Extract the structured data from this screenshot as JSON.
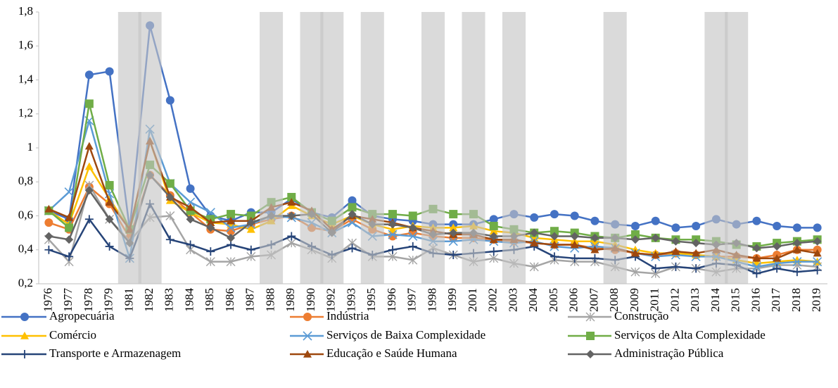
{
  "chart_data": {
    "type": "line",
    "categories": [
      "1976",
      "1977",
      "1978",
      "1979",
      "1981",
      "1982",
      "1983",
      "1984",
      "1985",
      "1986",
      "1987",
      "1988",
      "1989",
      "1990",
      "1992",
      "1993",
      "1995",
      "1996",
      "1997",
      "1998",
      "1999",
      "2001",
      "2002",
      "2003",
      "2004",
      "2005",
      "2006",
      "2007",
      "2008",
      "2009",
      "2011",
      "2012",
      "2013",
      "2014",
      "2015",
      "2016",
      "2017",
      "2018",
      "2019"
    ],
    "ylim": [
      0.2,
      1.8
    ],
    "yticks": [
      {
        "value": 0.2,
        "label": "0,2"
      },
      {
        "value": 0.4,
        "label": "0,4"
      },
      {
        "value": 0.6,
        "label": "0,6"
      },
      {
        "value": 0.8,
        "label": "0,8"
      },
      1,
      {
        "value": 1.2,
        "label": "1,2"
      },
      {
        "value": 1.4,
        "label": "1,4"
      },
      {
        "value": 1.6,
        "label": "1,6"
      },
      {
        "value": 1.8,
        "label": "1,8"
      }
    ],
    "shading": {
      "color": "#c4c4c4",
      "values": [
        0,
        0,
        0,
        0,
        1,
        1,
        0,
        0,
        0,
        0,
        0,
        1,
        0,
        1,
        1,
        0,
        1,
        0,
        0,
        1,
        0,
        1,
        0,
        1,
        0,
        0,
        0,
        0,
        1,
        0,
        0,
        0,
        0,
        1,
        1,
        0,
        0,
        0,
        0
      ]
    },
    "series": [
      {
        "name": "Agropecuária",
        "color": "#4472c4",
        "marker": "circle",
        "values": [
          0.63,
          0.58,
          1.43,
          1.45,
          0.52,
          1.72,
          1.28,
          0.76,
          0.6,
          0.57,
          0.62,
          0.62,
          0.7,
          0.62,
          0.59,
          0.69,
          0.6,
          0.58,
          0.57,
          0.55,
          0.55,
          0.55,
          0.58,
          0.61,
          0.59,
          0.61,
          0.6,
          0.57,
          0.55,
          0.54,
          0.57,
          0.53,
          0.54,
          0.58,
          0.55,
          0.57,
          0.54,
          0.53,
          0.53
        ]
      },
      {
        "name": "Indústria",
        "color": "#ed7d31",
        "marker": "circle",
        "values": [
          0.56,
          0.52,
          0.77,
          0.67,
          0.47,
          0.84,
          0.72,
          0.62,
          0.52,
          0.51,
          0.55,
          0.58,
          0.6,
          0.53,
          0.51,
          0.58,
          0.52,
          0.48,
          0.5,
          0.48,
          0.47,
          0.47,
          0.46,
          0.45,
          0.44,
          0.43,
          0.43,
          0.41,
          0.4,
          0.38,
          0.37,
          0.38,
          0.37,
          0.36,
          0.36,
          0.35,
          0.37,
          0.4,
          0.4
        ]
      },
      {
        "name": "Construção",
        "color": "#a5a5a5",
        "marker": "star",
        "values": [
          0.46,
          0.33,
          0.78,
          0.58,
          0.45,
          0.59,
          0.6,
          0.4,
          0.33,
          0.33,
          0.36,
          0.37,
          0.44,
          0.4,
          0.35,
          0.44,
          0.36,
          0.36,
          0.34,
          0.41,
          0.37,
          0.33,
          0.35,
          0.32,
          0.3,
          0.34,
          0.33,
          0.33,
          0.3,
          0.27,
          0.26,
          0.3,
          0.29,
          0.27,
          0.29,
          0.29,
          0.31,
          0.31,
          0.3
        ]
      },
      {
        "name": "Comércio",
        "color": "#ffc000",
        "marker": "triangle",
        "values": [
          0.63,
          0.55,
          0.89,
          0.7,
          0.52,
          1.04,
          0.69,
          0.62,
          0.56,
          0.55,
          0.52,
          0.57,
          0.66,
          0.6,
          0.55,
          0.6,
          0.55,
          0.52,
          0.54,
          0.53,
          0.53,
          0.54,
          0.51,
          0.5,
          0.47,
          0.46,
          0.45,
          0.45,
          0.43,
          0.4,
          0.38,
          0.38,
          0.37,
          0.36,
          0.34,
          0.32,
          0.33,
          0.34,
          0.33
        ]
      },
      {
        "name": "Serviços de Baixa Complexidade",
        "color": "#5b9bd5",
        "marker": "cross",
        "values": [
          0.63,
          0.74,
          1.16,
          0.73,
          0.35,
          1.11,
          0.79,
          0.68,
          0.62,
          0.53,
          0.55,
          0.6,
          0.59,
          0.56,
          0.5,
          0.56,
          0.48,
          0.49,
          0.48,
          0.45,
          0.45,
          0.46,
          0.45,
          0.44,
          0.45,
          0.42,
          0.41,
          0.42,
          0.41,
          0.38,
          0.36,
          0.37,
          0.36,
          0.36,
          0.33,
          0.3,
          0.32,
          0.33,
          0.33
        ]
      },
      {
        "name": "Serviços de Alta Complexidade",
        "color": "#70ad47",
        "marker": "square",
        "values": [
          0.63,
          0.53,
          1.26,
          0.78,
          0.52,
          0.9,
          0.79,
          0.63,
          0.58,
          0.61,
          0.6,
          0.68,
          0.71,
          0.62,
          0.57,
          0.65,
          0.61,
          0.61,
          0.6,
          0.64,
          0.61,
          0.61,
          0.54,
          0.52,
          0.5,
          0.51,
          0.5,
          0.48,
          0.47,
          0.49,
          0.47,
          0.46,
          0.46,
          0.45,
          0.43,
          0.42,
          0.44,
          0.45,
          0.46
        ]
      },
      {
        "name": "Transporte e Armazenagem",
        "color": "#264478",
        "marker": "plus",
        "values": [
          0.4,
          0.36,
          0.58,
          0.42,
          0.35,
          0.67,
          0.46,
          0.43,
          0.39,
          0.43,
          0.4,
          0.43,
          0.48,
          0.42,
          0.37,
          0.41,
          0.37,
          0.4,
          0.42,
          0.38,
          0.37,
          0.38,
          0.39,
          0.4,
          0.42,
          0.36,
          0.35,
          0.35,
          0.34,
          0.36,
          0.29,
          0.3,
          0.29,
          0.32,
          0.31,
          0.26,
          0.29,
          0.27,
          0.28
        ]
      },
      {
        "name": "Educação e Saúde Humana",
        "color": "#9e480e",
        "marker": "triangle",
        "values": [
          0.64,
          0.59,
          1.01,
          0.68,
          0.52,
          1.04,
          0.71,
          0.65,
          0.56,
          0.57,
          0.57,
          0.65,
          0.68,
          0.63,
          0.52,
          0.6,
          0.58,
          0.56,
          0.53,
          0.51,
          0.49,
          0.49,
          0.46,
          0.46,
          0.44,
          0.43,
          0.43,
          0.4,
          0.41,
          0.38,
          0.37,
          0.39,
          0.38,
          0.4,
          0.37,
          0.35,
          0.35,
          0.4,
          0.38
        ]
      },
      {
        "name": "Administração Pública",
        "color": "#636363",
        "marker": "diamond",
        "values": [
          0.48,
          0.46,
          0.75,
          0.58,
          0.44,
          0.84,
          0.71,
          0.58,
          0.53,
          0.47,
          0.56,
          0.6,
          0.6,
          0.61,
          0.5,
          0.61,
          0.55,
          0.55,
          0.53,
          0.49,
          0.5,
          0.5,
          0.48,
          0.48,
          0.5,
          0.48,
          0.48,
          0.47,
          0.47,
          0.46,
          0.47,
          0.45,
          0.44,
          0.43,
          0.44,
          0.41,
          0.42,
          0.44,
          0.45
        ]
      }
    ]
  }
}
